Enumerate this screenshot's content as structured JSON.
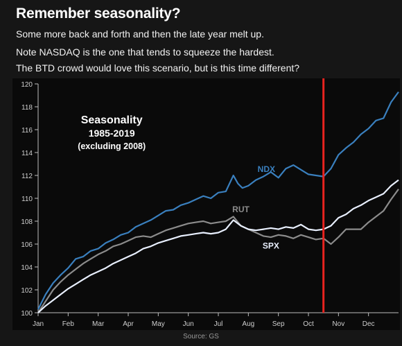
{
  "page": {
    "title": "Remember seasonality?",
    "lines": [
      "Some more back and forth and then the late year melt up.",
      "Note NASDAQ is the one that tends to squeeze the hardest.",
      "The BTD crowd would love this scenario, but is this time different?"
    ],
    "source": "Source: GS"
  },
  "chart_data": {
    "type": "line",
    "title": "Seasonality",
    "subtitle": "1985-2019",
    "note": "(excluding 2008)",
    "x_categories": [
      "Jan",
      "Feb",
      "Mar",
      "Apr",
      "May",
      "Jun",
      "Jul",
      "Aug",
      "Sep",
      "Oct",
      "Nov",
      "Dec"
    ],
    "xlim": [
      0,
      12
    ],
    "ylim": [
      100,
      120
    ],
    "y_ticks": [
      100,
      102,
      104,
      106,
      108,
      110,
      112,
      114,
      116,
      118,
      120
    ],
    "grid": false,
    "background": "#0a0a0a",
    "marker_line": {
      "x": 9.5,
      "color": "#e8231f"
    },
    "series": [
      {
        "name": "NDX",
        "color": "#3a80bf",
        "points": [
          [
            0,
            100.3
          ],
          [
            0.25,
            101.6
          ],
          [
            0.5,
            102.6
          ],
          [
            0.75,
            103.3
          ],
          [
            1,
            103.9
          ],
          [
            1.25,
            104.7
          ],
          [
            1.5,
            104.9
          ],
          [
            1.75,
            105.4
          ],
          [
            2,
            105.6
          ],
          [
            2.25,
            106.1
          ],
          [
            2.5,
            106.4
          ],
          [
            2.75,
            106.8
          ],
          [
            3,
            107.0
          ],
          [
            3.25,
            107.5
          ],
          [
            3.5,
            107.8
          ],
          [
            3.75,
            108.1
          ],
          [
            4,
            108.5
          ],
          [
            4.25,
            108.9
          ],
          [
            4.5,
            109.0
          ],
          [
            4.75,
            109.4
          ],
          [
            5,
            109.6
          ],
          [
            5.25,
            109.9
          ],
          [
            5.5,
            110.2
          ],
          [
            5.75,
            110.0
          ],
          [
            6,
            110.5
          ],
          [
            6.25,
            110.6
          ],
          [
            6.5,
            112.0
          ],
          [
            6.65,
            111.3
          ],
          [
            6.8,
            110.9
          ],
          [
            7,
            111.1
          ],
          [
            7.25,
            111.6
          ],
          [
            7.5,
            111.9
          ],
          [
            7.75,
            112.3
          ],
          [
            8,
            111.8
          ],
          [
            8.25,
            112.6
          ],
          [
            8.5,
            112.9
          ],
          [
            8.75,
            112.5
          ],
          [
            9,
            112.1
          ],
          [
            9.25,
            112.0
          ],
          [
            9.5,
            111.9
          ],
          [
            9.75,
            112.6
          ],
          [
            10,
            113.8
          ],
          [
            10.25,
            114.4
          ],
          [
            10.5,
            114.9
          ],
          [
            10.75,
            115.6
          ],
          [
            11,
            116.1
          ],
          [
            11.25,
            116.8
          ],
          [
            11.5,
            117.0
          ],
          [
            11.75,
            118.4
          ],
          [
            12,
            119.3
          ]
        ]
      },
      {
        "name": "RUT",
        "color": "#8c8c8c",
        "points": [
          [
            0,
            100.0
          ],
          [
            0.25,
            101.0
          ],
          [
            0.5,
            102.0
          ],
          [
            0.75,
            102.7
          ],
          [
            1,
            103.3
          ],
          [
            1.25,
            103.8
          ],
          [
            1.5,
            104.3
          ],
          [
            1.75,
            104.7
          ],
          [
            2,
            105.1
          ],
          [
            2.25,
            105.4
          ],
          [
            2.5,
            105.8
          ],
          [
            2.75,
            106.0
          ],
          [
            3,
            106.3
          ],
          [
            3.25,
            106.6
          ],
          [
            3.5,
            106.7
          ],
          [
            3.75,
            106.6
          ],
          [
            4,
            106.9
          ],
          [
            4.25,
            107.2
          ],
          [
            4.5,
            107.4
          ],
          [
            4.75,
            107.6
          ],
          [
            5,
            107.8
          ],
          [
            5.25,
            107.9
          ],
          [
            5.5,
            108.0
          ],
          [
            5.75,
            107.8
          ],
          [
            6,
            107.9
          ],
          [
            6.25,
            108.0
          ],
          [
            6.5,
            108.4
          ],
          [
            6.75,
            107.6
          ],
          [
            7,
            107.3
          ],
          [
            7.25,
            107.0
          ],
          [
            7.5,
            106.7
          ],
          [
            7.75,
            106.6
          ],
          [
            8,
            106.8
          ],
          [
            8.25,
            106.7
          ],
          [
            8.5,
            106.5
          ],
          [
            8.75,
            106.8
          ],
          [
            9,
            106.6
          ],
          [
            9.25,
            106.4
          ],
          [
            9.5,
            106.5
          ],
          [
            9.75,
            106.0
          ],
          [
            10,
            106.6
          ],
          [
            10.25,
            107.3
          ],
          [
            10.5,
            107.3
          ],
          [
            10.75,
            107.3
          ],
          [
            11,
            107.9
          ],
          [
            11.25,
            108.4
          ],
          [
            11.5,
            108.9
          ],
          [
            11.75,
            109.9
          ],
          [
            12,
            110.8
          ]
        ]
      },
      {
        "name": "SPX",
        "color": "#e9f0ff",
        "points": [
          [
            0,
            100.0
          ],
          [
            0.25,
            100.6
          ],
          [
            0.5,
            101.1
          ],
          [
            0.75,
            101.6
          ],
          [
            1,
            102.1
          ],
          [
            1.25,
            102.5
          ],
          [
            1.5,
            102.9
          ],
          [
            1.75,
            103.3
          ],
          [
            2,
            103.6
          ],
          [
            2.25,
            103.9
          ],
          [
            2.5,
            104.3
          ],
          [
            2.75,
            104.6
          ],
          [
            3,
            104.9
          ],
          [
            3.25,
            105.2
          ],
          [
            3.5,
            105.6
          ],
          [
            3.75,
            105.8
          ],
          [
            4,
            106.1
          ],
          [
            4.25,
            106.3
          ],
          [
            4.5,
            106.5
          ],
          [
            4.75,
            106.7
          ],
          [
            5,
            106.8
          ],
          [
            5.25,
            106.9
          ],
          [
            5.5,
            107.0
          ],
          [
            5.75,
            106.9
          ],
          [
            6,
            107.0
          ],
          [
            6.25,
            107.3
          ],
          [
            6.5,
            108.1
          ],
          [
            6.75,
            107.6
          ],
          [
            7,
            107.3
          ],
          [
            7.25,
            107.2
          ],
          [
            7.5,
            107.3
          ],
          [
            7.75,
            107.4
          ],
          [
            8,
            107.3
          ],
          [
            8.25,
            107.5
          ],
          [
            8.5,
            107.4
          ],
          [
            8.75,
            107.7
          ],
          [
            9,
            107.3
          ],
          [
            9.25,
            107.2
          ],
          [
            9.5,
            107.3
          ],
          [
            9.75,
            107.6
          ],
          [
            10,
            108.3
          ],
          [
            10.25,
            108.6
          ],
          [
            10.5,
            109.1
          ],
          [
            10.75,
            109.4
          ],
          [
            11,
            109.8
          ],
          [
            11.25,
            110.1
          ],
          [
            11.5,
            110.4
          ],
          [
            11.75,
            111.1
          ],
          [
            12,
            111.6
          ]
        ]
      }
    ],
    "labels": [
      {
        "text": "NDX",
        "x": 7.6,
        "y": 112.3,
        "color": "#3a80bf"
      },
      {
        "text": "RUT",
        "x": 6.75,
        "y": 108.8,
        "color": "#8c8c8c"
      },
      {
        "text": "SPX",
        "x": 7.75,
        "y": 105.6,
        "color": "#e9f0ff"
      }
    ]
  }
}
